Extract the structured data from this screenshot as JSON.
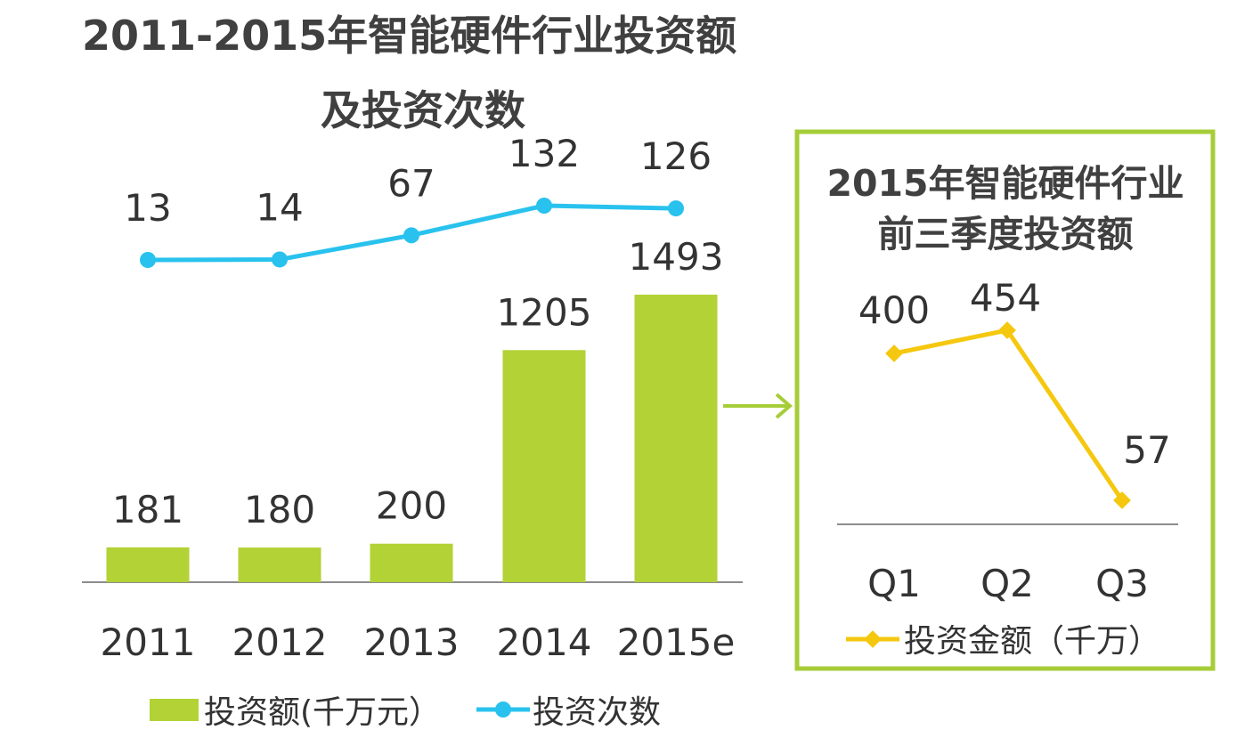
{
  "title": {
    "line1": "2011-2015年智能硬件行业投资额",
    "line2": "及投资次数"
  },
  "colors": {
    "bar": "#b2d235",
    "line_main": "#29c2ee",
    "line_side": "#f5c80f",
    "frame": "#a6cd38",
    "axis": "#8c8c8c",
    "text": "#333333"
  },
  "chart_data": [
    {
      "type": "bar",
      "categories": [
        "2011",
        "2012",
        "2013",
        "2014",
        "2015e"
      ],
      "series": [
        {
          "name": "投资额(千万元）",
          "type": "bar",
          "values": [
            181,
            180,
            200,
            1205,
            1493
          ]
        },
        {
          "name": "投资次数",
          "type": "line",
          "values": [
            13,
            14,
            67,
            132,
            126
          ]
        }
      ],
      "legend_position": "bottom-left",
      "grid": false
    },
    {
      "type": "line",
      "title": "2015年智能硬件行业前三季度投资额",
      "title_lines": [
        "2015年智能硬件行业",
        "前三季度投资额"
      ],
      "categories": [
        "Q1",
        "Q2",
        "Q3"
      ],
      "series": [
        {
          "name": "投资金额（千万）",
          "values": [
            400,
            454,
            57
          ]
        }
      ],
      "legend_position": "bottom",
      "grid": false
    }
  ]
}
